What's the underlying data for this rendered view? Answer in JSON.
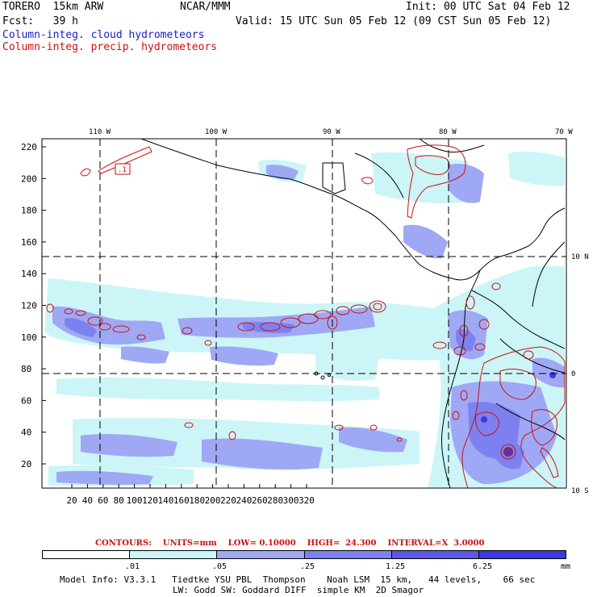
{
  "header": {
    "model": "TORERO  15km ARW",
    "org": "NCAR/MMM",
    "init": "Init: 00 UTC Sat 04 Feb 12",
    "fcst": "Fcst:   39 h",
    "valid": "Valid: 15 UTC Sun 05 Feb 12 (09 CST Sun 05 Feb 12)",
    "field_cloud": "Column-integ. cloud hydrometeors",
    "field_precip": "Column-integ. precip. hydrometeors"
  },
  "axes": {
    "top_lon_labels": [
      "110 W",
      "100 W",
      "90 W",
      "80 W",
      "70 W"
    ],
    "right_lat_labels": [
      "10 N",
      "0",
      "10 S"
    ],
    "left_grid_labels": [
      "220",
      "200",
      "180",
      "160",
      "140",
      "120",
      "100",
      "80",
      "60",
      "40",
      "20"
    ],
    "bottom_grid_labels": [
      "20",
      "40",
      "60",
      "80",
      "100",
      "120",
      "140",
      "160",
      "180",
      "200",
      "220",
      "240",
      "260",
      "280",
      "300",
      "320"
    ],
    "contour_label": ".1"
  },
  "contours": {
    "label": "CONTOURS:",
    "units": "UNITS=mm",
    "low": "LOW= 0.10000",
    "high": "HIGH=  24.300",
    "interval": "INTERVAL=X  3.0000"
  },
  "colorbar": {
    "colors": [
      "#ffffff",
      "#ccf5f7",
      "#9fa8f5",
      "#7d81f0",
      "#5a5ae6",
      "#3b3be0"
    ],
    "labels": [
      ".01",
      ".05",
      ".25",
      "1.25",
      "6.25"
    ],
    "unit": "mm"
  },
  "footer": {
    "line1": "Model Info: V3.3.1   Tiedtke YSU PBL  Thompson    Noah LSM  15 km,   44 levels,    66 sec",
    "line2": "LW: Godd SW: Goddard DIFF  simple KM  2D Smagor"
  }
}
